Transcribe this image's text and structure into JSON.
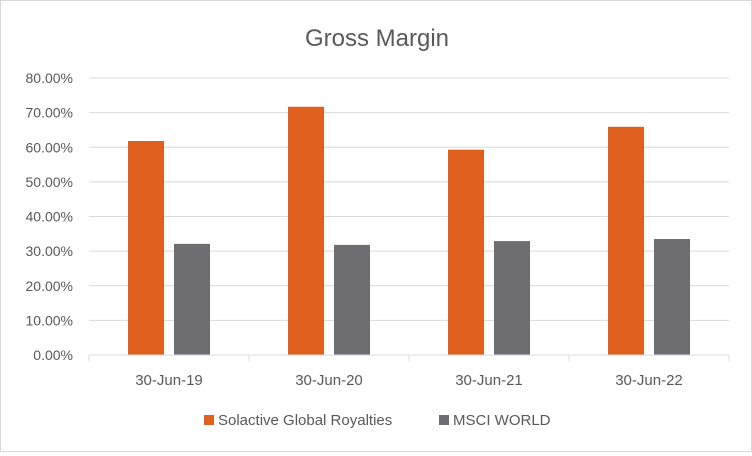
{
  "chart_data": {
    "type": "bar",
    "title": "Gross Margin",
    "categories": [
      "30-Jun-19",
      "30-Jun-20",
      "30-Jun-21",
      "30-Jun-22"
    ],
    "series": [
      {
        "name": "Solactive Global Royalties",
        "color": "#e0601f",
        "values": [
          61.8,
          71.7,
          59.3,
          65.9
        ]
      },
      {
        "name": "MSCI WORLD",
        "color": "#6e6d71",
        "values": [
          32.1,
          31.8,
          32.9,
          33.5
        ]
      }
    ],
    "ylim": [
      0,
      80
    ],
    "yticks": [
      "0.00%",
      "10.00%",
      "20.00%",
      "30.00%",
      "40.00%",
      "50.00%",
      "60.00%",
      "70.00%",
      "80.00%"
    ],
    "xlabel": "",
    "ylabel": "",
    "grid": true,
    "legend_position": "bottom"
  }
}
